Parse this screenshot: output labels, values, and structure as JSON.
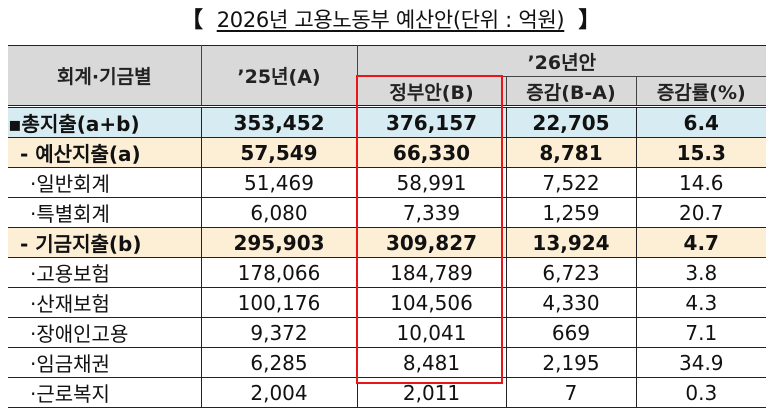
{
  "title": {
    "open_bracket": "【",
    "text": "2026년 고용노동부 예산안(단위 : 억원)",
    "close_bracket": "】"
  },
  "colors": {
    "header_bg": "#d9d9d9",
    "total_row_bg": "#d6ecf2",
    "subtotal_row_bg": "#fcefd5",
    "highlight_border": "#e8151b"
  },
  "table": {
    "headers": {
      "category": "회계·기금별",
      "prev_year": "’25년(A)",
      "group": "’26년안",
      "gov_proposal": "정부안(B)",
      "change": "증감(B-A)",
      "change_rate": "증감률(%)"
    },
    "rows": [
      {
        "type": "total",
        "label": "▪총지출(a+b)",
        "prev": "353,452",
        "gov": "376,157",
        "change": "22,705",
        "rate": "6.4"
      },
      {
        "type": "sub",
        "label": "- 예산지출(a)",
        "prev": "57,549",
        "gov": "66,330",
        "change": "8,781",
        "rate": "15.3"
      },
      {
        "type": "item",
        "label": "·일반회계",
        "prev": "51,469",
        "gov": "58,991",
        "change": "7,522",
        "rate": "14.6"
      },
      {
        "type": "item",
        "label": "·특별회계",
        "prev": "6,080",
        "gov": "7,339",
        "change": "1,259",
        "rate": "20.7"
      },
      {
        "type": "sub",
        "label": "- 기금지출(b)",
        "prev": "295,903",
        "gov": "309,827",
        "change": "13,924",
        "rate": "4.7"
      },
      {
        "type": "item",
        "label": "·고용보험",
        "prev": "178,066",
        "gov": "184,789",
        "change": "6,723",
        "rate": "3.8"
      },
      {
        "type": "item",
        "label": "·산재보험",
        "prev": "100,176",
        "gov": "104,506",
        "change": "4,330",
        "rate": "4.3"
      },
      {
        "type": "item",
        "label": "·장애인고용",
        "prev": "9,372",
        "gov": "10,041",
        "change": "669",
        "rate": "7.1"
      },
      {
        "type": "item",
        "label": "·임금채권",
        "prev": "6,285",
        "gov": "8,481",
        "change": "2,195",
        "rate": "34.9"
      },
      {
        "type": "item",
        "label": "·근로복지",
        "prev": "2,004",
        "gov": "2,011",
        "change": "7",
        "rate": "0.3"
      }
    ]
  }
}
